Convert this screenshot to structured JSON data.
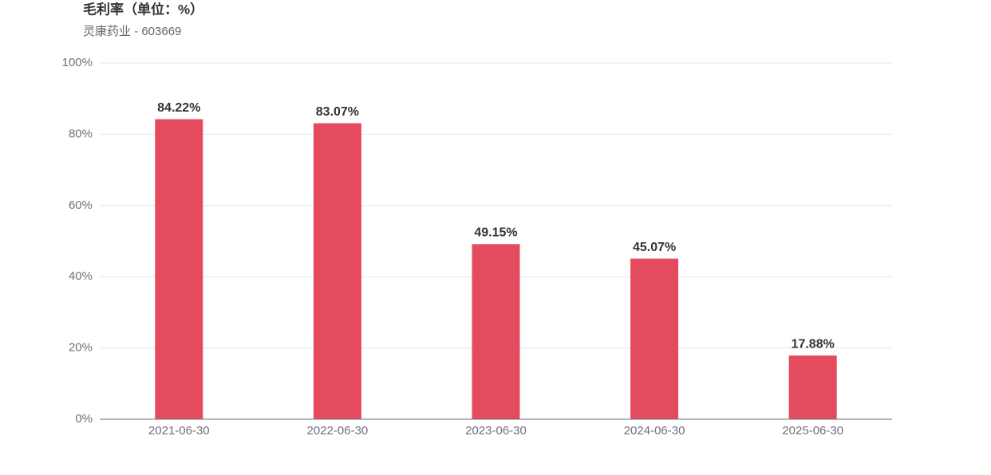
{
  "chart_data": {
    "type": "bar",
    "title": "毛利率（单位：%）",
    "subtitle": "灵康药业 - 603669",
    "categories": [
      "2021-06-30",
      "2022-06-30",
      "2023-06-30",
      "2024-06-30",
      "2025-06-30"
    ],
    "values": [
      84.22,
      83.07,
      49.15,
      45.07,
      17.88
    ],
    "value_labels": [
      "84.22%",
      "83.07%",
      "49.15%",
      "45.07%",
      "17.88%"
    ],
    "color": "#e54b5f",
    "ylim": [
      0,
      100
    ],
    "yticks": [
      {
        "value": 0,
        "label": "0%"
      },
      {
        "value": 20,
        "label": "20%"
      },
      {
        "value": 40,
        "label": "40%"
      },
      {
        "value": 60,
        "label": "60%"
      },
      {
        "value": 80,
        "label": "80%"
      },
      {
        "value": 100,
        "label": "100%"
      }
    ],
    "grid": true
  }
}
